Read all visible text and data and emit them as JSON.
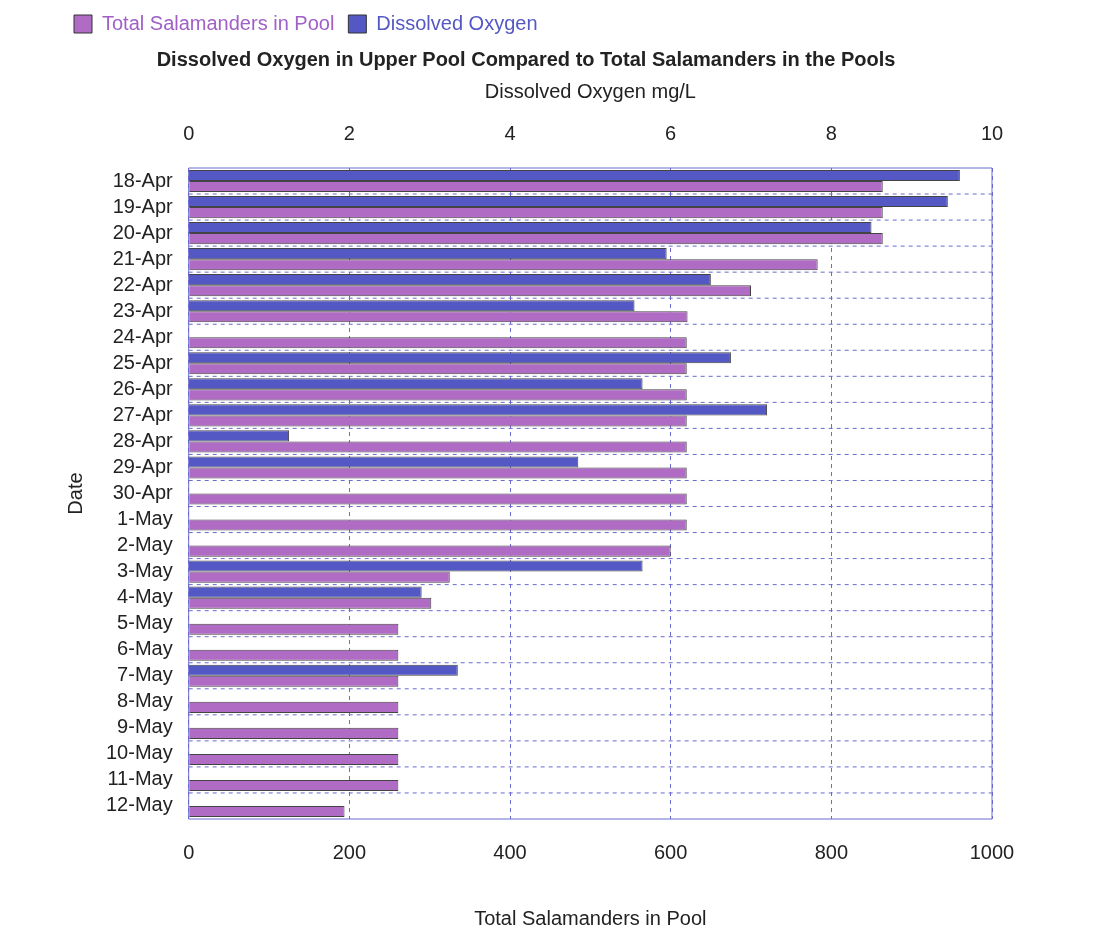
{
  "chart_data": {
    "type": "bar",
    "orientation": "horizontal",
    "title": "Dissolved Oxygen in Upper Pool Compared to Total Salamanders in the Pools",
    "xlabel": "Total Salamanders in Pool",
    "x2label": "Dissolved Oxygen mg/L",
    "ylabel": "Date",
    "categories": [
      "18-Apr",
      "19-Apr",
      "20-Apr",
      "21-Apr",
      "22-Apr",
      "23-Apr",
      "24-Apr",
      "25-Apr",
      "26-Apr",
      "27-Apr",
      "28-Apr",
      "29-Apr",
      "30-Apr",
      "1-May",
      "2-May",
      "3-May",
      "4-May",
      "5-May",
      "6-May",
      "7-May",
      "8-May",
      "9-May",
      "10-May",
      "11-May",
      "12-May"
    ],
    "series": [
      {
        "name": "Total Salamanders in Pool",
        "color": "#b06cc4",
        "values": [
          864,
          864,
          864,
          783,
          700,
          621,
          620,
          620,
          620,
          620,
          620,
          620,
          620,
          620,
          600,
          325,
          302,
          261,
          261,
          261,
          261,
          261,
          261,
          261,
          194
        ]
      },
      {
        "name": "Dissolved Oxygen",
        "color": "#5458c4",
        "axis": "x2",
        "values": [
          9.6,
          9.45,
          8.5,
          5.95,
          6.5,
          5.55,
          null,
          6.75,
          5.65,
          7.2,
          1.25,
          4.85,
          null,
          null,
          null,
          5.65,
          2.9,
          null,
          null,
          3.35,
          null,
          null,
          null,
          null,
          null
        ]
      }
    ],
    "xlim": [
      0,
      1000
    ],
    "xticks": [
      0,
      200,
      400,
      600,
      800,
      1000
    ],
    "x2lim": [
      0,
      10
    ],
    "x2ticks": [
      0,
      2,
      4,
      6,
      8,
      10
    ],
    "grid": true,
    "legend": "top left"
  }
}
